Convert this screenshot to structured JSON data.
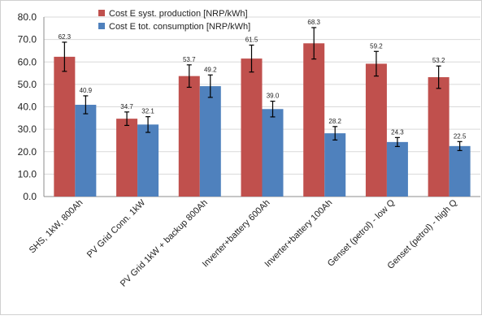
{
  "chart_data": {
    "type": "bar",
    "title": "",
    "xlabel": "",
    "ylabel": "",
    "ylim": [
      0,
      80
    ],
    "ytick_step": 10,
    "ytick_labels": [
      "0.0",
      "10.0",
      "20.0",
      "30.0",
      "40.0",
      "50.0",
      "60.0",
      "70.0",
      "80.0"
    ],
    "grid": true,
    "legend_position": "top-center",
    "categories": [
      "SHS, 1kW, 800Ah",
      "PV Grid Conn. 1kW",
      "PV Grid 1kW + backup 800Ah",
      "Inverter+battery 600Ah",
      "Inverter+battery 100Ah",
      "Genset (petrol) - low Q",
      "Genset (petrol) - high Q"
    ],
    "series": [
      {
        "name": "Cost E syst. production [NRP/kWh]",
        "color": "#c0504d",
        "values": [
          62.3,
          34.7,
          53.7,
          61.5,
          68.3,
          59.2,
          53.2
        ],
        "labels": [
          "62.3",
          "34.7",
          "53.7",
          "61.5",
          "68.3",
          "59.2",
          "53.2"
        ],
        "errors": [
          6.5,
          3.0,
          5.0,
          6.0,
          7.0,
          5.5,
          5.0
        ]
      },
      {
        "name": "Cost E tot. consumption [NRP/kWh]",
        "color": "#4f81bd",
        "values": [
          40.9,
          32.1,
          49.2,
          39.0,
          28.2,
          24.3,
          22.5
        ],
        "labels": [
          "40.9",
          "32.1",
          "49.2",
          "39.0",
          "28.2",
          "24.3",
          "22.5"
        ],
        "errors": [
          4.0,
          3.5,
          5.0,
          3.5,
          3.0,
          2.0,
          2.0
        ]
      }
    ]
  }
}
